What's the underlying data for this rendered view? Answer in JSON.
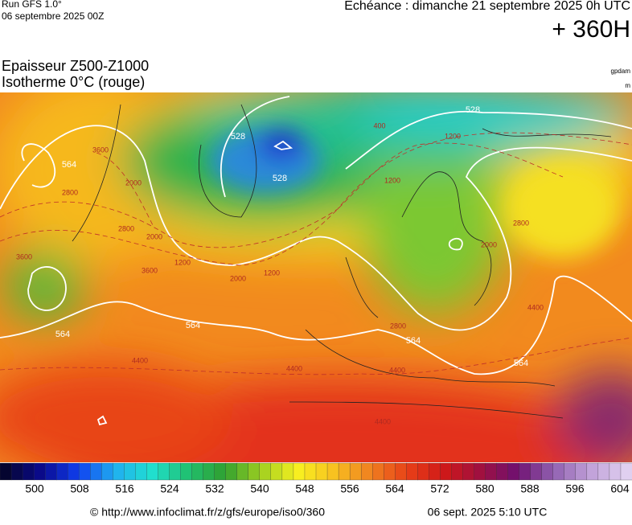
{
  "header": {
    "run": "Run GFS 1.0°",
    "run_date": "06 septembre 2025 00Z",
    "valid": "Echéance : dimanche 21 septembre 2025 0h UTC",
    "lead": "+ 360H",
    "field": "Epaisseur Z500-Z1000",
    "field2": "Isotherme 0°C (rouge)",
    "unit1": "gpdam",
    "unit2": "m"
  },
  "map_labels": [
    "528",
    "528",
    "528",
    "564",
    "564",
    "564",
    "564",
    "564",
    "3600",
    "2800",
    "2000",
    "2800",
    "2000",
    "3600",
    "1200",
    "2000",
    "1200",
    "400",
    "1200",
    "1200",
    "2800",
    "2000",
    "4400",
    "2800",
    "4400",
    "4400",
    "4400",
    "4400",
    "3600"
  ],
  "colorbar": {
    "ticks": [
      500,
      508,
      516,
      524,
      532,
      540,
      548,
      556,
      564,
      572,
      580,
      588,
      596,
      604
    ]
  },
  "footer": {
    "source": "© http://www.infoclimat.fr/z/gfs/europe/iso0/360",
    "time": "06 sept. 2025  5:10 UTC"
  }
}
